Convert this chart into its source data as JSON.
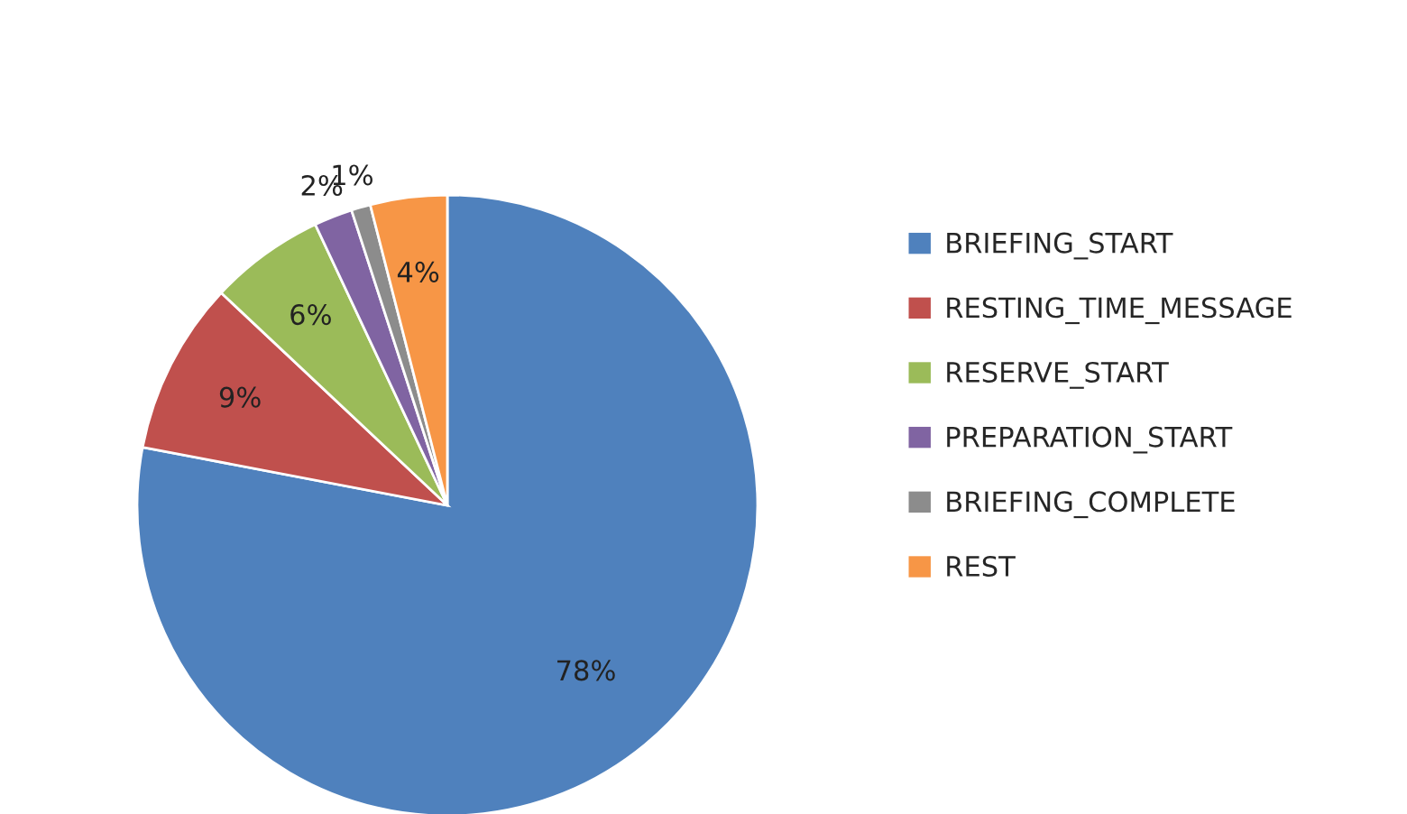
{
  "chart_data": {
    "type": "pie",
    "categories": [
      "BRIEFING_START",
      "RESTING_TIME_MESSAGE",
      "RESERVE_START",
      "PREPARATION_START",
      "BRIEFING_COMPLETE",
      "REST"
    ],
    "values": [
      78,
      9,
      6,
      2,
      1,
      4
    ],
    "colors": [
      "#4f81bd",
      "#c0504d",
      "#9bbb59",
      "#8064a2",
      "#8c8c8c",
      "#f79646"
    ],
    "value_labels": [
      "78%",
      "9%",
      "6%",
      "2%",
      "1%",
      "4%"
    ],
    "legend": "right"
  }
}
